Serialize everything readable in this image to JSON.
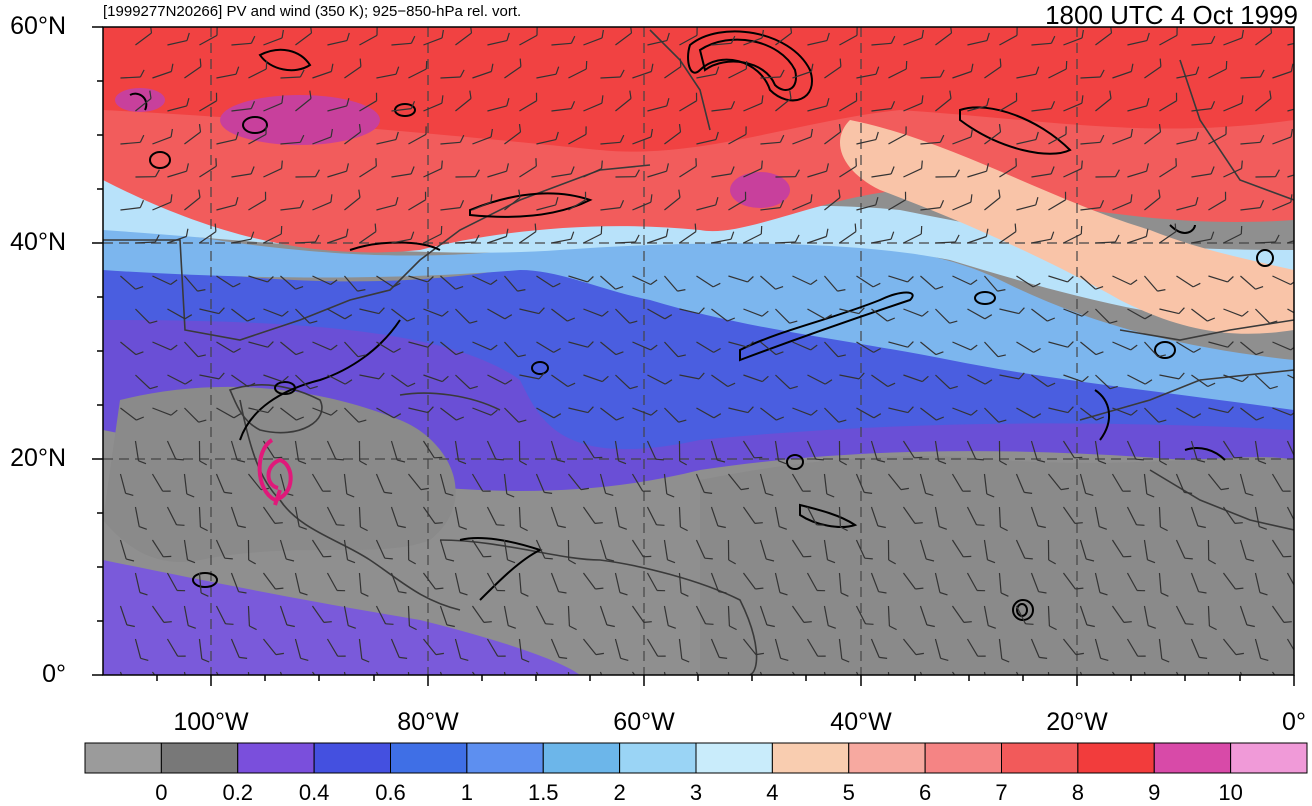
{
  "header": {
    "left_title": "[1999277N20266] PV and wind (350 K); 925−850-hPa rel. vort.",
    "right_title": "1800 UTC 4 Oct 1999"
  },
  "map": {
    "lat_labels": [
      "60°N",
      "40°N",
      "20°N",
      "0°"
    ],
    "lon_labels": [
      "100°W",
      "80°W",
      "60°W",
      "40°W",
      "20°W",
      "0°"
    ]
  },
  "colorbar": {
    "colors": [
      "#9b9b9b",
      "#787878",
      "#7a4fdc",
      "#4450e0",
      "#3f6fe6",
      "#5d8ff0",
      "#6cb6ea",
      "#9ad4f5",
      "#c9ecfb",
      "#f9cdb0",
      "#f7a9a0",
      "#f58484",
      "#f25a5a",
      "#f23c3c",
      "#d84aa8",
      "#f09ad8"
    ],
    "labels": [
      "0",
      "0.2",
      "0.4",
      "0.6",
      "1",
      "1.5",
      "2",
      "3",
      "4",
      "5",
      "6",
      "7",
      "8",
      "9",
      "10"
    ]
  },
  "storm_marker_color": "#e0197a"
}
